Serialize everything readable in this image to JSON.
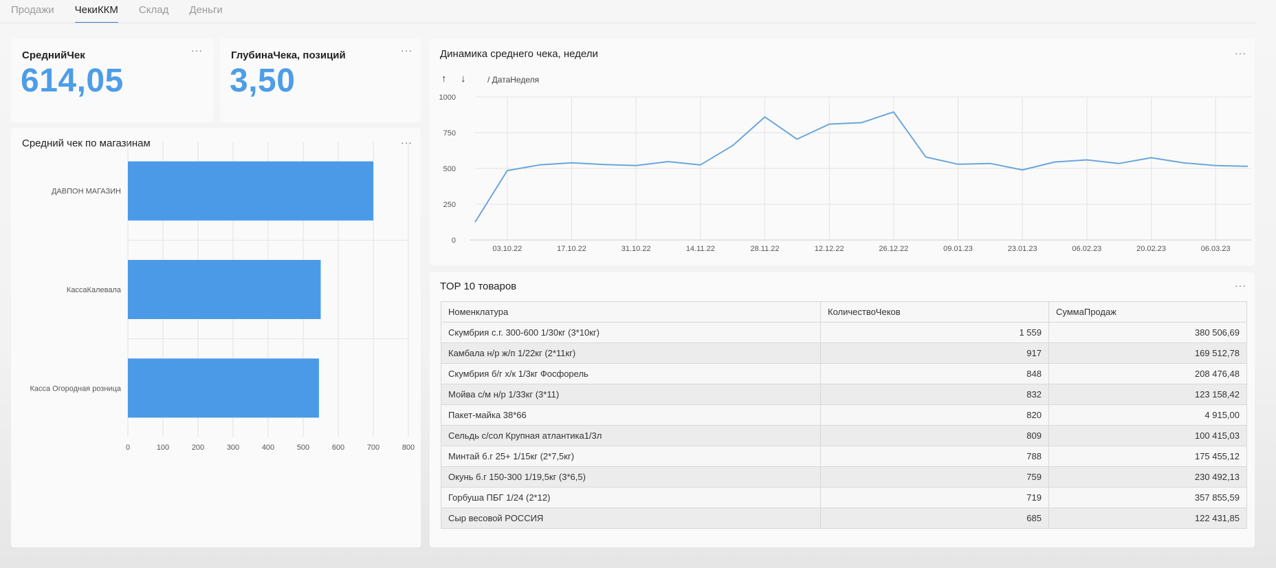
{
  "tabs": [
    {
      "label": "Продажи",
      "active": false
    },
    {
      "label": "ЧекиККМ",
      "active": true
    },
    {
      "label": "Склад",
      "active": false
    },
    {
      "label": "Деньги",
      "active": false
    }
  ],
  "kpi1": {
    "title": "СреднийЧек",
    "value": "614,05"
  },
  "kpi2": {
    "title": "ГлубинаЧека, позиций",
    "value": "3,50"
  },
  "more_label": "···",
  "bar_chart": {
    "title": "Средний чек по магазинам"
  },
  "line_chart": {
    "title": "Динамика среднего чека, недели",
    "sort_up": "↑",
    "sort_down": "↓",
    "breadcrumb": "/  ДатаНеделя"
  },
  "table": {
    "title": "TOP 10 товаров",
    "columns": [
      "Номенклатура",
      "КоличествоЧеков",
      "СуммаПродаж"
    ],
    "rows": [
      [
        "Скумбрия с.г. 300-600 1/30кг (3*10кг)",
        "1 559",
        "380 506,69"
      ],
      [
        "Камбала н/р ж/п 1/22кг (2*11кг)",
        "917",
        "169 512,78"
      ],
      [
        "Скумбрия б/г х/к 1/3кг Фосфорель",
        "848",
        "208 476,48"
      ],
      [
        "Мойва с/м н/р 1/33кг (3*11)",
        "832",
        "123 158,42"
      ],
      [
        "Пакет-майка 38*66",
        "820",
        "4 915,00"
      ],
      [
        "Сельдь с/сол Крупная атлантика1/3л",
        "809",
        "100 415,03"
      ],
      [
        "Минтай б.г 25+ 1/15кг (2*7,5кг)",
        "788",
        "175 455,12"
      ],
      [
        "Окунь б.г 150-300 1/19,5кг (3*6,5)",
        "759",
        "230 492,13"
      ],
      [
        "Горбуша ПБГ 1/24 (2*12)",
        "719",
        "357 855,59"
      ],
      [
        "Сыр весовой РОССИЯ",
        "685",
        "122 431,85"
      ]
    ]
  },
  "colors": {
    "accent": "#4d9de8",
    "bar": "#4a9ae8",
    "line": "#6aa6dc",
    "tab_underline": "#4a78c8"
  },
  "chart_data": [
    {
      "type": "bar",
      "orientation": "horizontal",
      "title": "Средний чек по магазинам",
      "categories": [
        "ДАВПОН МАГАЗИН",
        "КассаКалевала",
        "Касса Огородная розница"
      ],
      "values": [
        700,
        550,
        545
      ],
      "xlim": [
        0,
        800
      ],
      "xticks": [
        0,
        100,
        200,
        300,
        400,
        500,
        600,
        700,
        800
      ],
      "grid": true
    },
    {
      "type": "line",
      "title": "Динамика среднего чека, недели",
      "x": [
        "26.09.22",
        "03.10.22",
        "10.10.22",
        "17.10.22",
        "24.10.22",
        "31.10.22",
        "07.11.22",
        "14.11.22",
        "21.11.22",
        "28.11.22",
        "05.12.22",
        "12.12.22",
        "19.12.22",
        "26.12.22",
        "02.01.23",
        "09.01.23",
        "16.01.23",
        "23.01.23",
        "30.01.23",
        "06.02.23",
        "13.02.23",
        "20.02.23",
        "27.02.23",
        "06.03.23",
        "13.03.23"
      ],
      "y": [
        125,
        485,
        525,
        540,
        528,
        520,
        548,
        525,
        660,
        860,
        705,
        810,
        820,
        895,
        580,
        530,
        535,
        490,
        545,
        560,
        535,
        575,
        540,
        520,
        515
      ],
      "xticks": [
        "03.10.22",
        "17.10.22",
        "31.10.22",
        "14.11.22",
        "28.11.22",
        "12.12.22",
        "26.12.22",
        "09.01.23",
        "23.01.23",
        "06.02.23",
        "20.02.23",
        "06.03.23"
      ],
      "ylim": [
        0,
        1000
      ],
      "yticks": [
        0,
        250,
        500,
        750,
        1000
      ],
      "grid": true
    }
  ]
}
